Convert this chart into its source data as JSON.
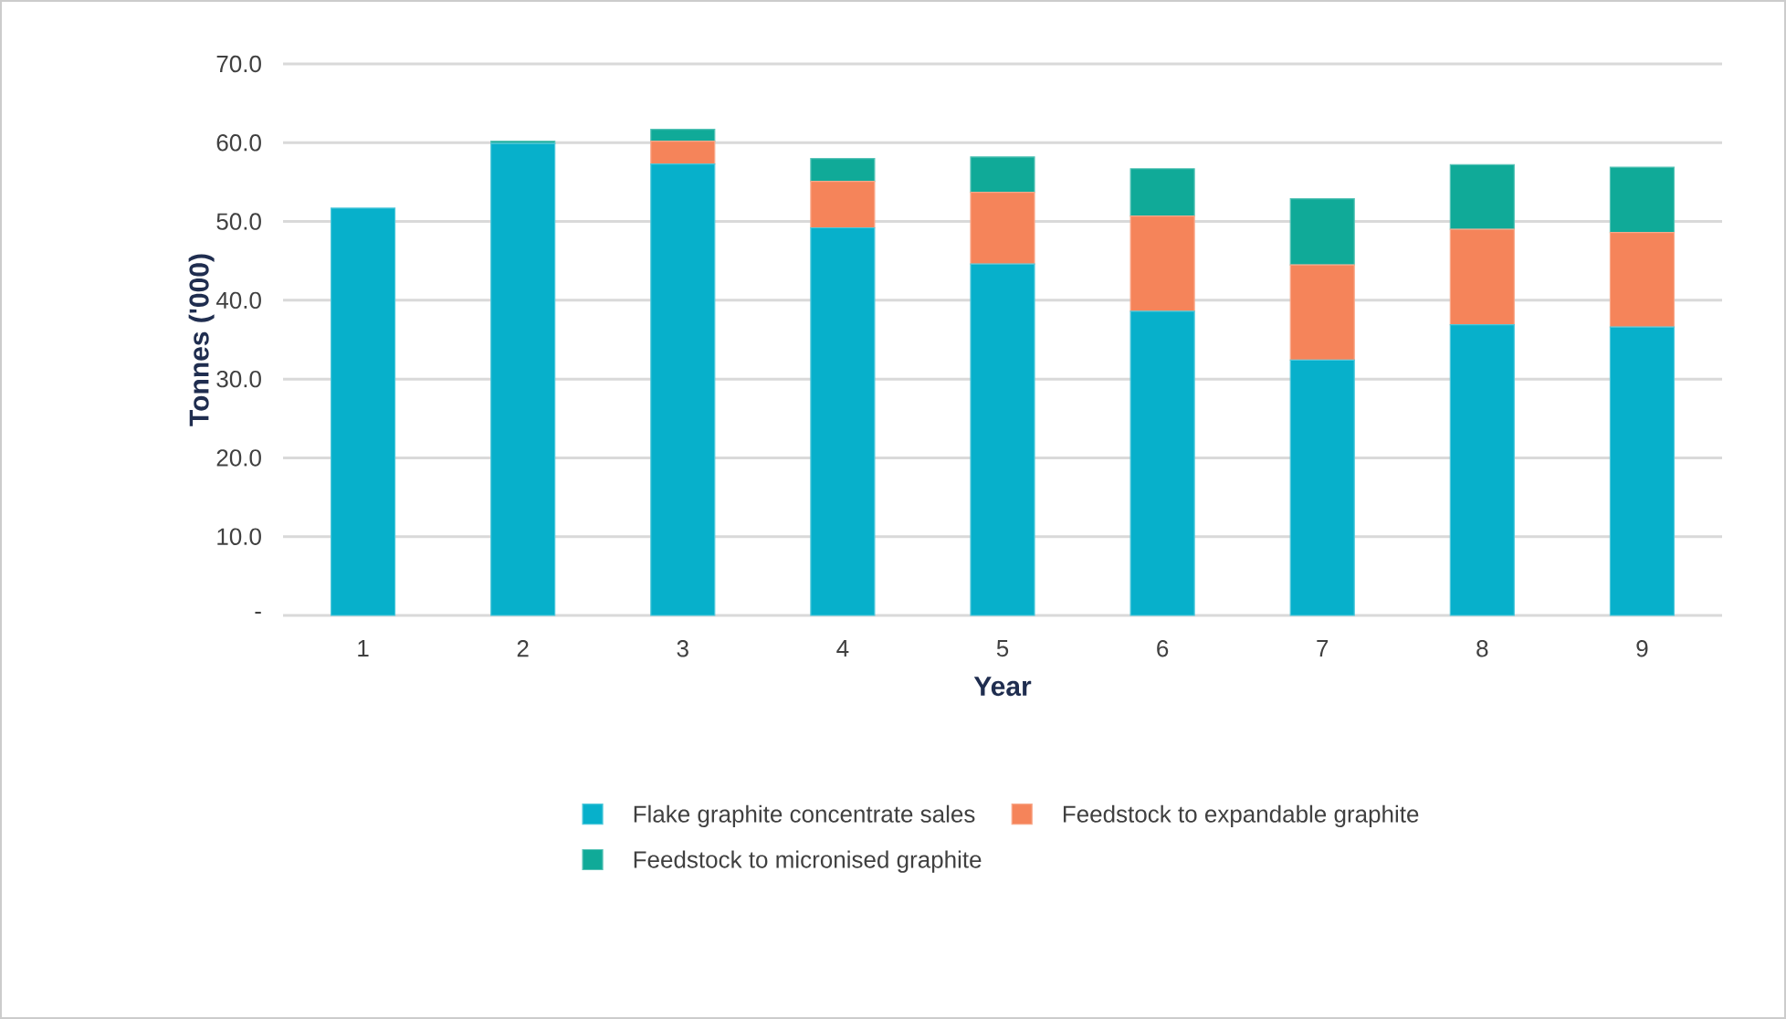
{
  "chart_data": {
    "type": "bar",
    "stacked": true,
    "xlabel": "Year",
    "ylabel": "Tonnes ('000)",
    "categories": [
      "1",
      "2",
      "3",
      "4",
      "5",
      "6",
      "7",
      "8",
      "9"
    ],
    "series": [
      {
        "name": "Flake graphite concentrate sales",
        "color": "#07b0cb",
        "values": [
          51.7,
          59.9,
          57.3,
          49.2,
          44.6,
          38.6,
          32.4,
          36.9,
          36.6
        ]
      },
      {
        "name": "Feedstock to expandable graphite",
        "color": "#f5845a",
        "values": [
          0,
          0,
          2.9,
          5.9,
          9.1,
          12.1,
          12.1,
          12.1,
          12.0
        ]
      },
      {
        "name": "Feedstock to micronised graphite",
        "color": "#10aa98",
        "values": [
          0,
          0.3,
          1.5,
          2.9,
          4.5,
          6.0,
          8.4,
          8.2,
          8.3
        ]
      }
    ],
    "ylim": [
      0,
      70
    ],
    "yticks": [
      {
        "value": 0,
        "label": "-"
      },
      {
        "value": 10,
        "label": "10.0"
      },
      {
        "value": 20,
        "label": "20.0"
      },
      {
        "value": 30,
        "label": "30.0"
      },
      {
        "value": 40,
        "label": "40.0"
      },
      {
        "value": 50,
        "label": "50.0"
      },
      {
        "value": 60,
        "label": "60.0"
      },
      {
        "value": 70,
        "label": "70.0"
      }
    ],
    "grid": "y",
    "legend": "bottom"
  }
}
